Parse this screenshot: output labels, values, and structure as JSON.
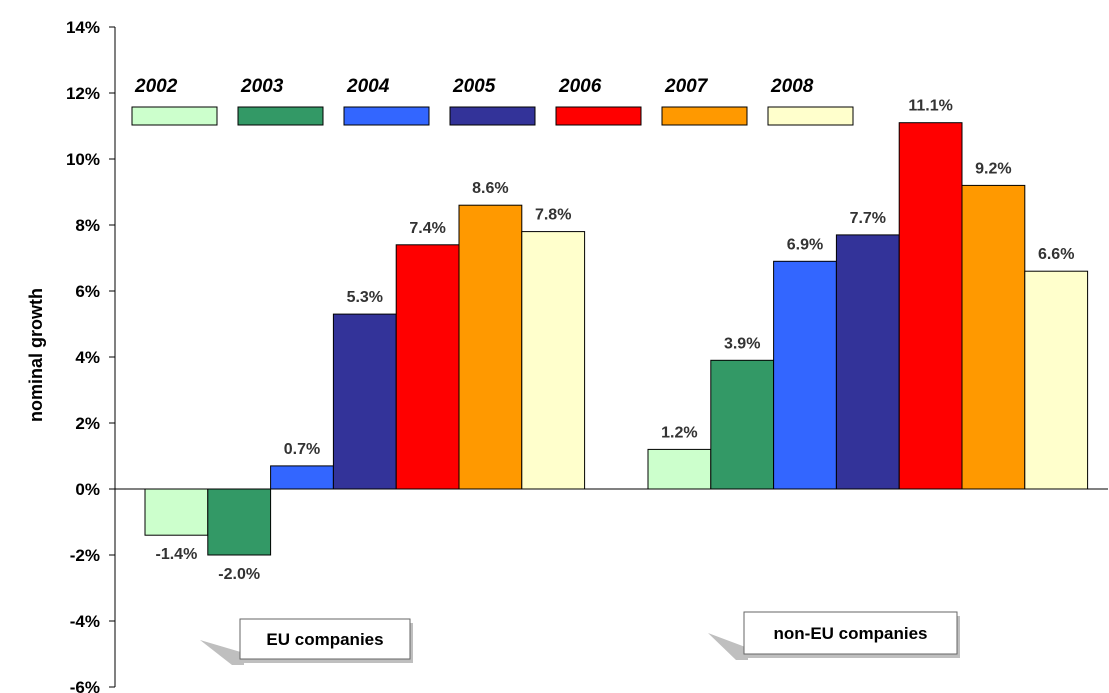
{
  "chart_data": {
    "type": "bar",
    "ylabel": "nominal growth",
    "ylim": [
      -6,
      14
    ],
    "y_ticks": [
      "14%",
      "12%",
      "10%",
      "8%",
      "6%",
      "4%",
      "2%",
      "0%",
      "-2%",
      "-4%",
      "-6%"
    ],
    "grid": false,
    "legend_position": "top",
    "categories": [
      "EU companies",
      "non-EU companies"
    ],
    "series": [
      {
        "name": "2002",
        "color": "#CCFFCC",
        "values": [
          -1.4,
          1.2
        ],
        "labels": [
          "-1.4%",
          "1.2%"
        ]
      },
      {
        "name": "2003",
        "color": "#339966",
        "values": [
          -2.0,
          3.9
        ],
        "labels": [
          "-2.0%",
          "3.9%"
        ]
      },
      {
        "name": "2004",
        "color": "#3366FF",
        "values": [
          0.7,
          6.9
        ],
        "labels": [
          "0.7%",
          "6.9%"
        ]
      },
      {
        "name": "2005",
        "color": "#333399",
        "values": [
          5.3,
          7.7
        ],
        "labels": [
          "5.3%",
          "7.7%"
        ]
      },
      {
        "name": "2006",
        "color": "#FF0000",
        "values": [
          7.4,
          11.1
        ],
        "labels": [
          "7.4%",
          "11.1%"
        ]
      },
      {
        "name": "2007",
        "color": "#FF9900",
        "values": [
          8.6,
          9.2
        ],
        "labels": [
          "8.6%",
          "9.2%"
        ]
      },
      {
        "name": "2008",
        "color": "#FFFFCC",
        "values": [
          7.8,
          6.6
        ],
        "labels": [
          "7.8%",
          "6.6%"
        ]
      }
    ]
  }
}
